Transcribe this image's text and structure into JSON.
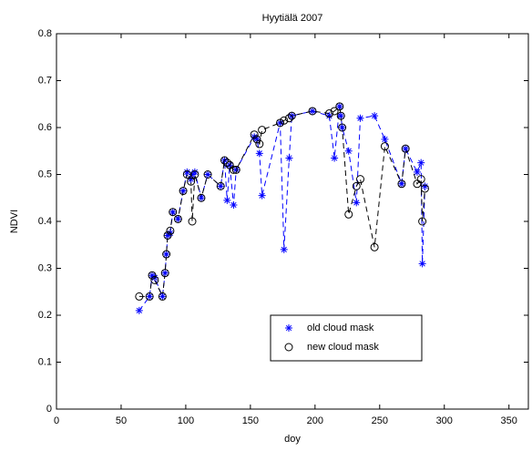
{
  "chart_data": {
    "type": "line",
    "title": "Hyytiälä 2007",
    "x_label": "doy",
    "y_label": "NDVI",
    "x": [
      64,
      72,
      74,
      76,
      82,
      84,
      85,
      86,
      88,
      90,
      94,
      98,
      101,
      104,
      105,
      107,
      112,
      117,
      127,
      130,
      132,
      134,
      137,
      139,
      153,
      155,
      157,
      159,
      173,
      176,
      180,
      182,
      198,
      211,
      215,
      219,
      220,
      221,
      226,
      232,
      235,
      246,
      254,
      267,
      270,
      279,
      282,
      283,
      285
    ],
    "series": [
      {
        "name": "old cloud mask",
        "color": "#0000ff",
        "marker": "star",
        "line": "dashed",
        "values": [
          0.21,
          0.24,
          0.285,
          0.28,
          0.24,
          0.29,
          0.33,
          0.37,
          0.375,
          0.42,
          0.405,
          0.465,
          0.505,
          0.49,
          0.5,
          0.505,
          0.45,
          0.5,
          0.475,
          0.53,
          0.445,
          0.52,
          0.435,
          0.51,
          0.58,
          0.575,
          0.545,
          0.455,
          0.61,
          0.34,
          0.535,
          0.625,
          0.635,
          0.625,
          0.535,
          0.645,
          0.625,
          0.6,
          0.55,
          0.44,
          0.62,
          0.625,
          0.575,
          0.48,
          0.555,
          0.505,
          0.525,
          0.31,
          0.475
        ]
      },
      {
        "name": "new cloud mask",
        "color": "#000000",
        "marker": "circle",
        "line": "dashed",
        "values": [
          0.24,
          0.24,
          0.285,
          0.275,
          0.24,
          0.29,
          0.33,
          0.37,
          0.38,
          0.42,
          0.405,
          0.465,
          0.5,
          0.485,
          0.4,
          0.5,
          0.45,
          0.5,
          0.475,
          0.53,
          0.525,
          0.52,
          0.51,
          0.51,
          0.585,
          0.575,
          0.565,
          0.595,
          0.61,
          0.615,
          0.62,
          0.625,
          0.635,
          0.63,
          0.635,
          0.645,
          0.625,
          0.6,
          0.415,
          0.475,
          0.49,
          0.345,
          0.56,
          0.48,
          0.555,
          0.48,
          0.49,
          0.4,
          0.47
        ]
      }
    ],
    "xlim": [
      0,
      365
    ],
    "ylim": [
      0,
      0.8
    ],
    "xticks": [
      0,
      50,
      100,
      150,
      200,
      250,
      300,
      350
    ],
    "yticks": [
      0,
      0.1,
      0.2,
      0.3,
      0.4,
      0.5,
      0.6,
      0.7,
      0.8
    ],
    "grid": false
  }
}
